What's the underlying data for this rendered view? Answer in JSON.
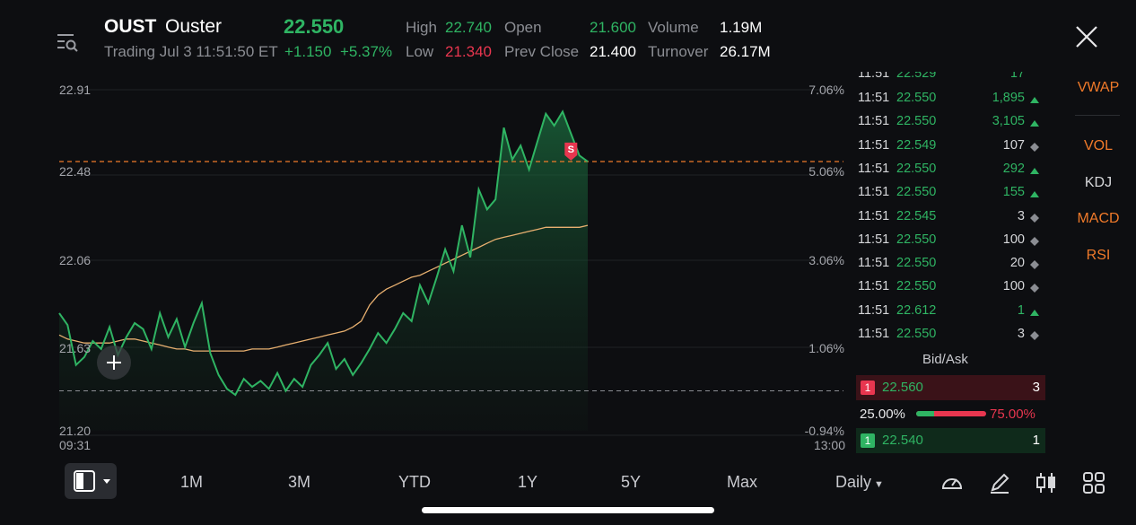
{
  "header": {
    "symbol": "OUST",
    "name": "Ouster",
    "price": "22.550",
    "status": "Trading Jul 3 11:51:50 ET",
    "change": "+1.150",
    "change_pct": "+5.37%",
    "high_label": "High",
    "high": "22.740",
    "low_label": "Low",
    "low": "21.340",
    "open_label": "Open",
    "open": "21.600",
    "prev_close_label": "Prev Close",
    "prev_close": "21.400",
    "volume_label": "Volume",
    "volume": "1.19M",
    "turnover_label": "Turnover",
    "turnover": "26.17M"
  },
  "chart_data": {
    "type": "line",
    "y_left_ticks": [
      "22.91",
      "22.48",
      "22.06",
      "21.63",
      "21.20"
    ],
    "y_right_ticks": [
      "7.06%",
      "5.06%",
      "3.06%",
      "1.06%",
      "-0.94%"
    ],
    "x_start": "09:31",
    "x_end": "13:00",
    "ylim": [
      21.2,
      22.91
    ],
    "reference_lines": {
      "prev_close": 21.4,
      "current": 22.55
    },
    "marker_label": "S",
    "series": [
      {
        "values": [
          21.79,
          21.73,
          21.53,
          21.57,
          21.65,
          21.61,
          21.72,
          21.58,
          21.67,
          21.74,
          21.71,
          21.61,
          21.79,
          21.67,
          21.76,
          21.62,
          21.74,
          21.84,
          21.59,
          21.48,
          21.41,
          21.38,
          21.46,
          21.42,
          21.45,
          21.41,
          21.49,
          21.4,
          21.46,
          21.42,
          21.53,
          21.58,
          21.64,
          21.51,
          21.56,
          21.48,
          21.54,
          21.61,
          21.69,
          21.64,
          21.71,
          21.79,
          21.75,
          21.93,
          21.84,
          21.97,
          22.11,
          22.0,
          22.23,
          22.07,
          22.41,
          22.31,
          22.36,
          22.72,
          22.56,
          22.63,
          22.51,
          22.65,
          22.79,
          22.73,
          22.8,
          22.69,
          22.58,
          22.55
        ]
      },
      {
        "values": [
          21.68,
          21.66,
          21.65,
          21.64,
          21.64,
          21.64,
          21.64,
          21.65,
          21.66,
          21.66,
          21.65,
          21.64,
          21.63,
          21.62,
          21.61,
          21.61,
          21.6,
          21.6,
          21.6,
          21.6,
          21.6,
          21.6,
          21.6,
          21.61,
          21.61,
          21.61,
          21.62,
          21.63,
          21.64,
          21.65,
          21.66,
          21.67,
          21.68,
          21.69,
          21.7,
          21.72,
          21.75,
          21.83,
          21.88,
          21.91,
          21.93,
          21.95,
          21.97,
          21.98,
          22.0,
          22.02,
          22.04,
          22.06,
          22.08,
          22.1,
          22.12,
          22.14,
          22.16,
          22.17,
          22.18,
          22.19,
          22.2,
          22.21,
          22.22,
          22.22,
          22.22,
          22.22,
          22.22,
          22.23
        ]
      }
    ]
  },
  "trades": {
    "partial_row": {
      "time": "11:51",
      "price": "22.529",
      "volume": "17"
    },
    "rows": [
      {
        "time": "11:51",
        "price": "22.550",
        "volume": "1,895",
        "dir": "up"
      },
      {
        "time": "11:51",
        "price": "22.550",
        "volume": "3,105",
        "dir": "up"
      },
      {
        "time": "11:51",
        "price": "22.549",
        "volume": "107",
        "dir": "neutral"
      },
      {
        "time": "11:51",
        "price": "22.550",
        "volume": "292",
        "dir": "up"
      },
      {
        "time": "11:51",
        "price": "22.550",
        "volume": "155",
        "dir": "up"
      },
      {
        "time": "11:51",
        "price": "22.545",
        "volume": "3",
        "dir": "neutral"
      },
      {
        "time": "11:51",
        "price": "22.550",
        "volume": "100",
        "dir": "neutral"
      },
      {
        "time": "11:51",
        "price": "22.550",
        "volume": "20",
        "dir": "neutral"
      },
      {
        "time": "11:51",
        "price": "22.550",
        "volume": "100",
        "dir": "neutral"
      },
      {
        "time": "11:51",
        "price": "22.612",
        "volume": "1",
        "dir": "up"
      },
      {
        "time": "11:51",
        "price": "22.550",
        "volume": "3",
        "dir": "neutral"
      }
    ]
  },
  "bidask": {
    "title": "Bid/Ask",
    "ask": {
      "level": "1",
      "price": "22.560",
      "qty": "3"
    },
    "bid_pct": "25.00%",
    "ask_pct": "75.00%",
    "bid": {
      "level": "1",
      "price": "22.540",
      "qty": "1"
    }
  },
  "indicators": [
    "VWAP",
    "VOL",
    "KDJ",
    "MACD",
    "RSI"
  ],
  "ranges": [
    "1M",
    "3M",
    "YTD",
    "1Y",
    "5Y",
    "Max"
  ],
  "period": "Daily",
  "colors": {
    "up": "#2fb463",
    "down": "#e8364f",
    "accent": "#f07a2a",
    "vwap": "#e8b070"
  }
}
